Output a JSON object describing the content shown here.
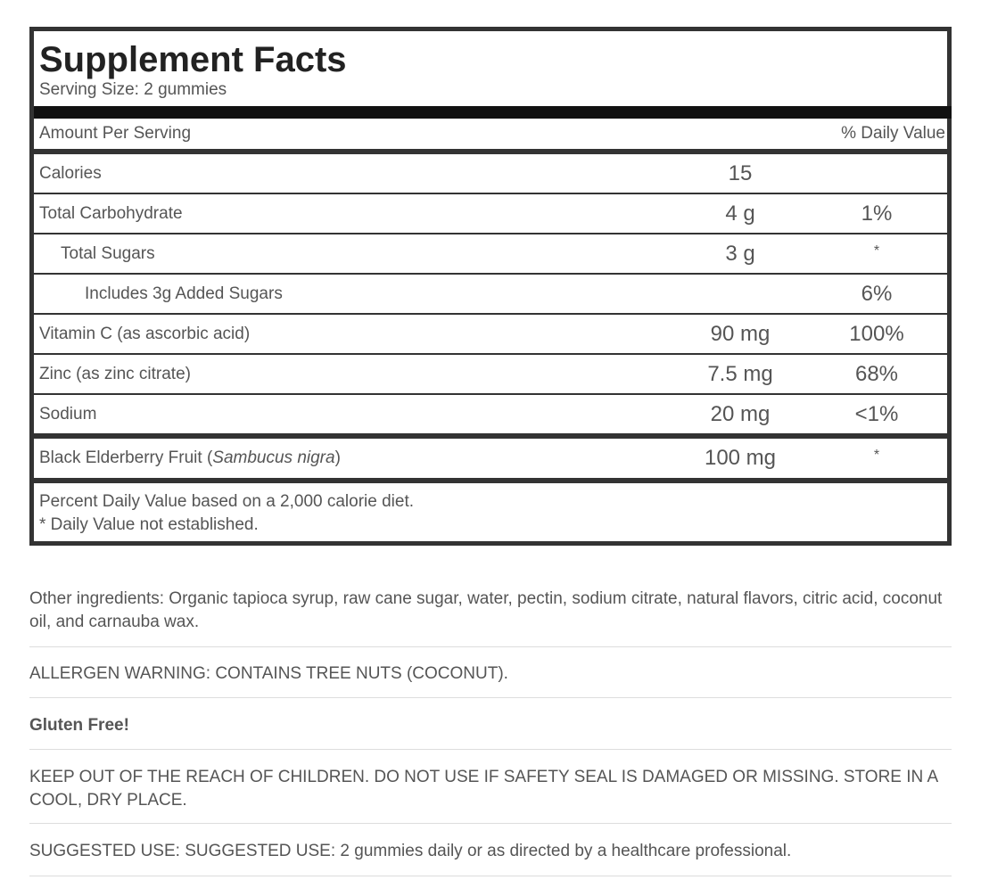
{
  "facts": {
    "title": "Supplement Facts",
    "serving": "Serving Size: 2 gummies",
    "header": [
      "Amount Per Serving",
      "% Daily Value"
    ],
    "rows": [
      {
        "name": "Calories",
        "amount": "15"
      },
      {
        "name": "Total Carbohydrate",
        "amount": "4 g",
        "dv": "1%"
      },
      {
        "name": "Total Sugars",
        "amount": "3 g",
        "dv": "*"
      },
      {
        "name": "Includes 3g Added Sugars",
        "dv": "6%"
      },
      {
        "name": "Vitamin C (as ascorbic acid)",
        "amount": "90 mg",
        "dv": "100%"
      },
      {
        "name": "Zinc (as zinc citrate)",
        "amount": "7.5 mg",
        "dv": "68%"
      },
      {
        "name": "Sodium",
        "amount": "20 mg",
        "dv": "<1%"
      }
    ],
    "other": {
      "name_prefix": "Black Elderberry Fruit (",
      "name_italic": "Sambucus nigra",
      "name_suffix": ")",
      "amount": "100 mg",
      "dv": "*"
    },
    "footnotes": [
      "Percent Daily Value based on a 2,000 calorie diet.",
      "* Daily Value not established."
    ]
  },
  "info": [
    "Other ingredients: Organic tapioca syrup, raw cane sugar, water, pectin, sodium citrate, natural flavors, citric acid, coconut oil, and carnauba wax.",
    "ALLERGEN WARNING: CONTAINS TREE NUTS (COCONUT).",
    "Gluten Free!",
    "KEEP OUT OF THE REACH OF CHILDREN. DO NOT USE IF SAFETY SEAL IS DAMAGED OR MISSING. STORE IN A COOL, DRY PLACE.",
    "SUGGESTED USE: SUGGESTED USE: 2 gummies daily or as directed by a healthcare professional."
  ]
}
